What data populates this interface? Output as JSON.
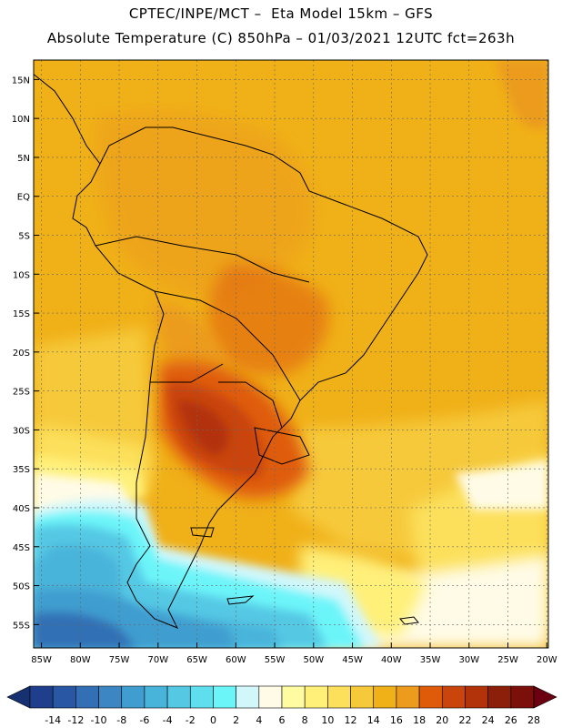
{
  "header": {
    "line1": "CPTEC/INPE/MCT –  Eta Model 15km – GFS",
    "line2": "Absolute Temperature (C) 850hPa – 01/03/2021 12UTC fct=263h"
  },
  "map": {
    "lat_labels": [
      "15N",
      "10N",
      "5N",
      "EQ",
      "5S",
      "10S",
      "15S",
      "20S",
      "25S",
      "30S",
      "35S",
      "40S",
      "45S",
      "50S",
      "55S"
    ],
    "lon_labels": [
      "85W",
      "80W",
      "75W",
      "70W",
      "65W",
      "60W",
      "55W",
      "50W",
      "45W",
      "40W",
      "35W",
      "30W",
      "25W",
      "20W"
    ]
  },
  "colorbar": {
    "labels": [
      "-14",
      "-12",
      "-10",
      "-8",
      "-6",
      "-4",
      "-2",
      "0",
      "2",
      "4",
      "6",
      "8",
      "10",
      "12",
      "14",
      "16",
      "18",
      "20",
      "22",
      "24",
      "26",
      "28"
    ],
    "colors": [
      "#1f3f8c",
      "#2957a3",
      "#326fb5",
      "#3c86c4",
      "#3f9dcf",
      "#48b4da",
      "#55c8e4",
      "#5fdfee",
      "#6cf5f9",
      "#d2f7fb",
      "#fffbe6",
      "#fffba0",
      "#fff07a",
      "#fce05c",
      "#f6c93a",
      "#f0b018",
      "#ec9b1c",
      "#df5b0a",
      "#c9450c",
      "#b2320a",
      "#8c1f0a",
      "#7a1009"
    ]
  }
}
